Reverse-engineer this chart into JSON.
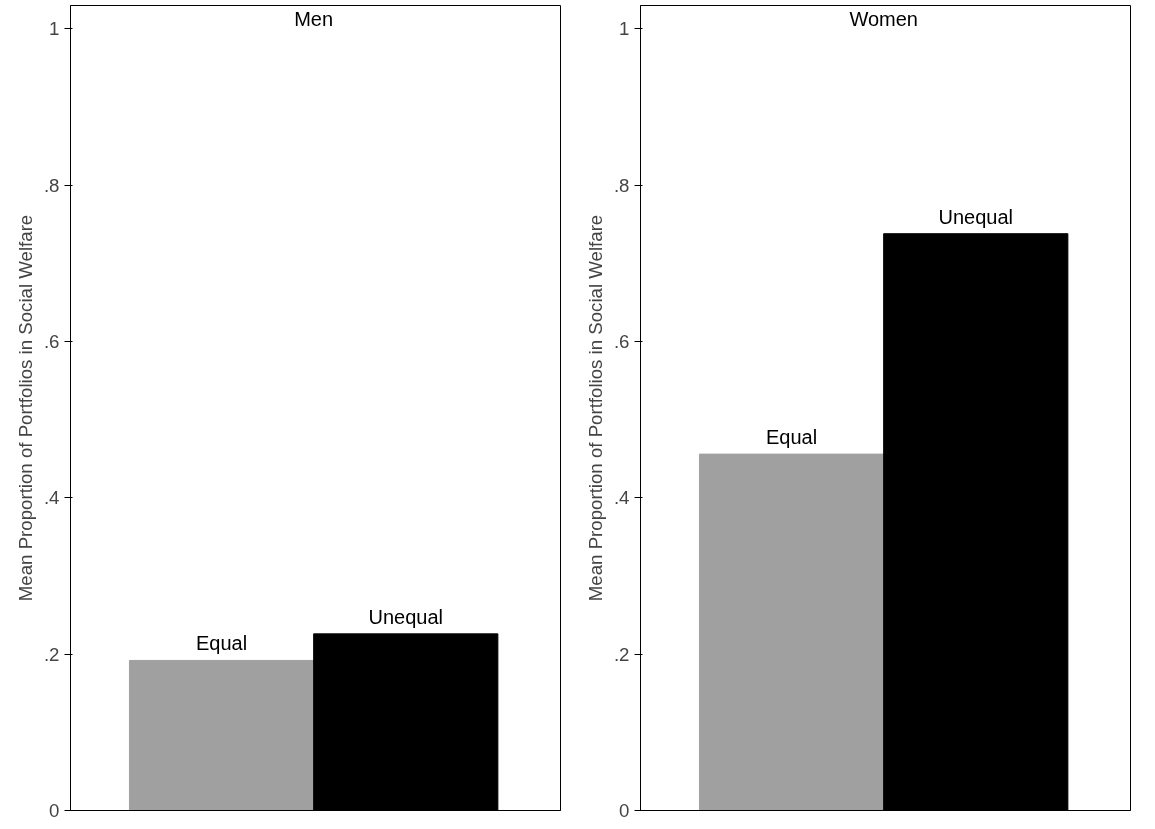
{
  "chart_data": [
    {
      "type": "bar",
      "title": "Men",
      "ylabel": "Mean Proportion of Portfolios in Social Welfare",
      "categories": [
        "Equal",
        "Unequal"
      ],
      "values": [
        0.192,
        0.226
      ],
      "colors": [
        "#a0a0a0",
        "#000000"
      ],
      "ylim": [
        0,
        1.03
      ],
      "yticks": [
        0,
        {
          "value": 0.2,
          "label": ".2"
        },
        {
          "value": 0.4,
          "label": ".4"
        },
        {
          "value": 0.6,
          "label": ".6"
        },
        {
          "value": 0.8,
          "label": ".8"
        },
        1
      ],
      "tick_labels": "y"
    },
    {
      "type": "bar",
      "title": "Women",
      "ylabel": "Mean Proportion of Portfolios in Social Welfare",
      "categories": [
        "Equal",
        "Unequal"
      ],
      "values": [
        0.456,
        0.738
      ],
      "colors": [
        "#a0a0a0",
        "#000000"
      ],
      "ylim": [
        0,
        1.03
      ],
      "yticks": [
        0,
        {
          "value": 0.2,
          "label": ".2"
        },
        {
          "value": 0.4,
          "label": ".4"
        },
        {
          "value": 0.6,
          "label": ".6"
        },
        {
          "value": 0.8,
          "label": ".8"
        },
        1
      ],
      "tick_labels": "y"
    }
  ]
}
